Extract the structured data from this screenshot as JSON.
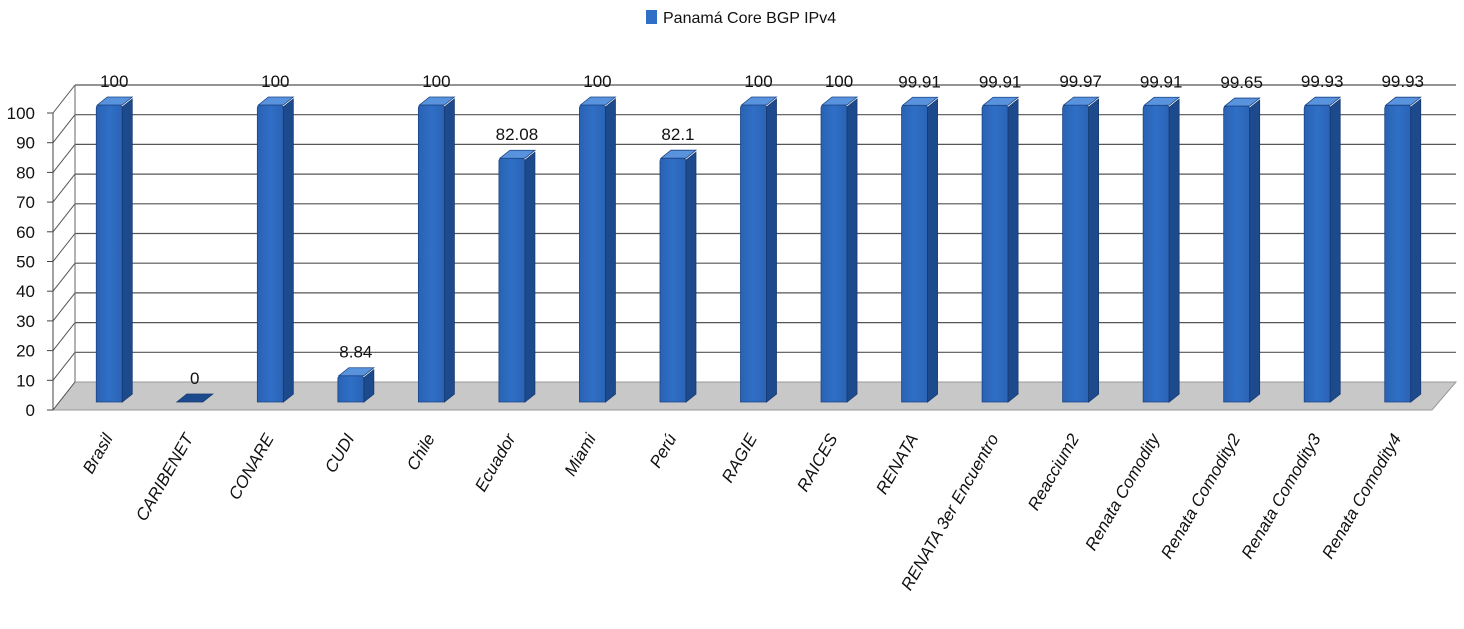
{
  "chart_data": {
    "type": "bar",
    "series": [
      {
        "name": "Panamá Core BGP IPv4",
        "values": [
          100,
          0,
          100,
          8.84,
          100,
          82.08,
          100,
          82.1,
          100,
          100,
          99.91,
          99.91,
          99.97,
          99.91,
          99.65,
          99.93,
          99.93
        ],
        "value_labels": [
          "100",
          "0",
          "100",
          "8.84",
          "100",
          "82.08",
          "100",
          "82.1",
          "100",
          "100",
          "99.91",
          "99.91",
          "99.97",
          "99.91",
          "99.65",
          "99.93",
          "99.93"
        ]
      }
    ],
    "categories": [
      "Brasil",
      "CARIBENET",
      "CONARE",
      "CUDI",
      "Chile",
      "Ecuador",
      "Miami",
      "Perú",
      "RAGIE",
      "RAICES",
      "RENATA",
      "RENATA 3er Encuentro",
      "Reaccium2",
      "Renata Comodity",
      "Renata Comodity2",
      "Renata Comodity3",
      "Renata Comodity4"
    ],
    "y_ticks": [
      "0",
      "10",
      "20",
      "30",
      "40",
      "50",
      "60",
      "70",
      "80",
      "90",
      "100"
    ],
    "ylim": [
      0,
      100
    ],
    "grid": true,
    "legend_position": "top-center",
    "style": "3d-column",
    "colors": {
      "bar": "#2f6fc6",
      "bar_side": "#1d4a8c",
      "bar_top": "#5a93dd",
      "floor": "#c8c8c8",
      "grid": "#555555"
    }
  }
}
